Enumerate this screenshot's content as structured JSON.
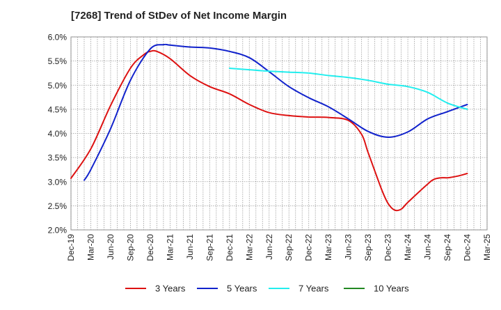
{
  "chart_data": {
    "type": "line",
    "title": "[7268]  Trend of StDev of Net Income Margin",
    "xlabel": "",
    "ylabel": "",
    "x_ticks": [
      "Dec-19",
      "Mar-20",
      "Jun-20",
      "Sep-20",
      "Dec-20",
      "Mar-21",
      "Jun-21",
      "Sep-21",
      "Dec-21",
      "Mar-22",
      "Jun-22",
      "Sep-22",
      "Dec-22",
      "Mar-23",
      "Jun-23",
      "Sep-23",
      "Dec-23",
      "Mar-24",
      "Jun-24",
      "Sep-24",
      "Dec-24",
      "Mar-25"
    ],
    "y_ticks": [
      "2.0%",
      "2.5%",
      "3.0%",
      "3.5%",
      "4.0%",
      "4.5%",
      "5.0%",
      "5.5%",
      "6.0%"
    ],
    "ylim": [
      2.0,
      6.0
    ],
    "grid": true,
    "legend_position": "bottom",
    "series": [
      {
        "name": "3 Years",
        "color": "#dd1111",
        "x": [
          "Dec-19",
          "Mar-20",
          "Jun-20",
          "Sep-20",
          "Nov-20",
          "Dec-20",
          "Jan-21",
          "Mar-21",
          "Jun-21",
          "Sep-21",
          "Dec-21",
          "Mar-22",
          "Jun-22",
          "Sep-22",
          "Dec-22",
          "Mar-23",
          "Jun-23",
          "Aug-23",
          "Sep-23",
          "Nov-23",
          "Dec-23",
          "Jan-24",
          "Feb-24",
          "Mar-24",
          "Jun-24",
          "Jul-24",
          "Aug-24",
          "Sep-24",
          "Oct-24",
          "Nov-24",
          "Dec-24"
        ],
        "values": [
          3.07,
          3.68,
          4.58,
          5.35,
          5.63,
          5.7,
          5.7,
          5.55,
          5.2,
          4.97,
          4.82,
          4.6,
          4.43,
          4.37,
          4.34,
          4.33,
          4.27,
          3.98,
          3.6,
          2.85,
          2.55,
          2.41,
          2.43,
          2.57,
          2.95,
          3.05,
          3.08,
          3.08,
          3.1,
          3.13,
          3.17
        ]
      },
      {
        "name": "5 Years",
        "color": "#1122cc",
        "x": [
          "Feb-20",
          "Mar-20",
          "Jun-20",
          "Sep-20",
          "Dec-20",
          "Feb-21",
          "Mar-21",
          "Jun-21",
          "Sep-21",
          "Dec-21",
          "Mar-22",
          "Jun-22",
          "Sep-22",
          "Dec-22",
          "Mar-23",
          "Jun-23",
          "Sep-23",
          "Dec-23",
          "Mar-24",
          "Jun-24",
          "Sep-24",
          "Dec-24"
        ],
        "values": [
          3.03,
          3.25,
          4.1,
          5.1,
          5.75,
          5.84,
          5.83,
          5.79,
          5.77,
          5.7,
          5.57,
          5.28,
          4.97,
          4.74,
          4.55,
          4.3,
          4.04,
          3.92,
          4.03,
          4.3,
          4.45,
          4.6
        ]
      },
      {
        "name": "7 Years",
        "color": "#22eeee",
        "x": [
          "Dec-21",
          "Mar-22",
          "Jun-22",
          "Sep-22",
          "Dec-22",
          "Mar-23",
          "Jun-23",
          "Sep-23",
          "Dec-23",
          "Mar-24",
          "Jun-24",
          "Sep-24",
          "Dec-24"
        ],
        "values": [
          5.35,
          5.32,
          5.29,
          5.27,
          5.25,
          5.2,
          5.16,
          5.1,
          5.02,
          4.97,
          4.85,
          4.63,
          4.5
        ]
      },
      {
        "name": "10 Years",
        "color": "#228822",
        "x": [],
        "values": []
      }
    ]
  }
}
